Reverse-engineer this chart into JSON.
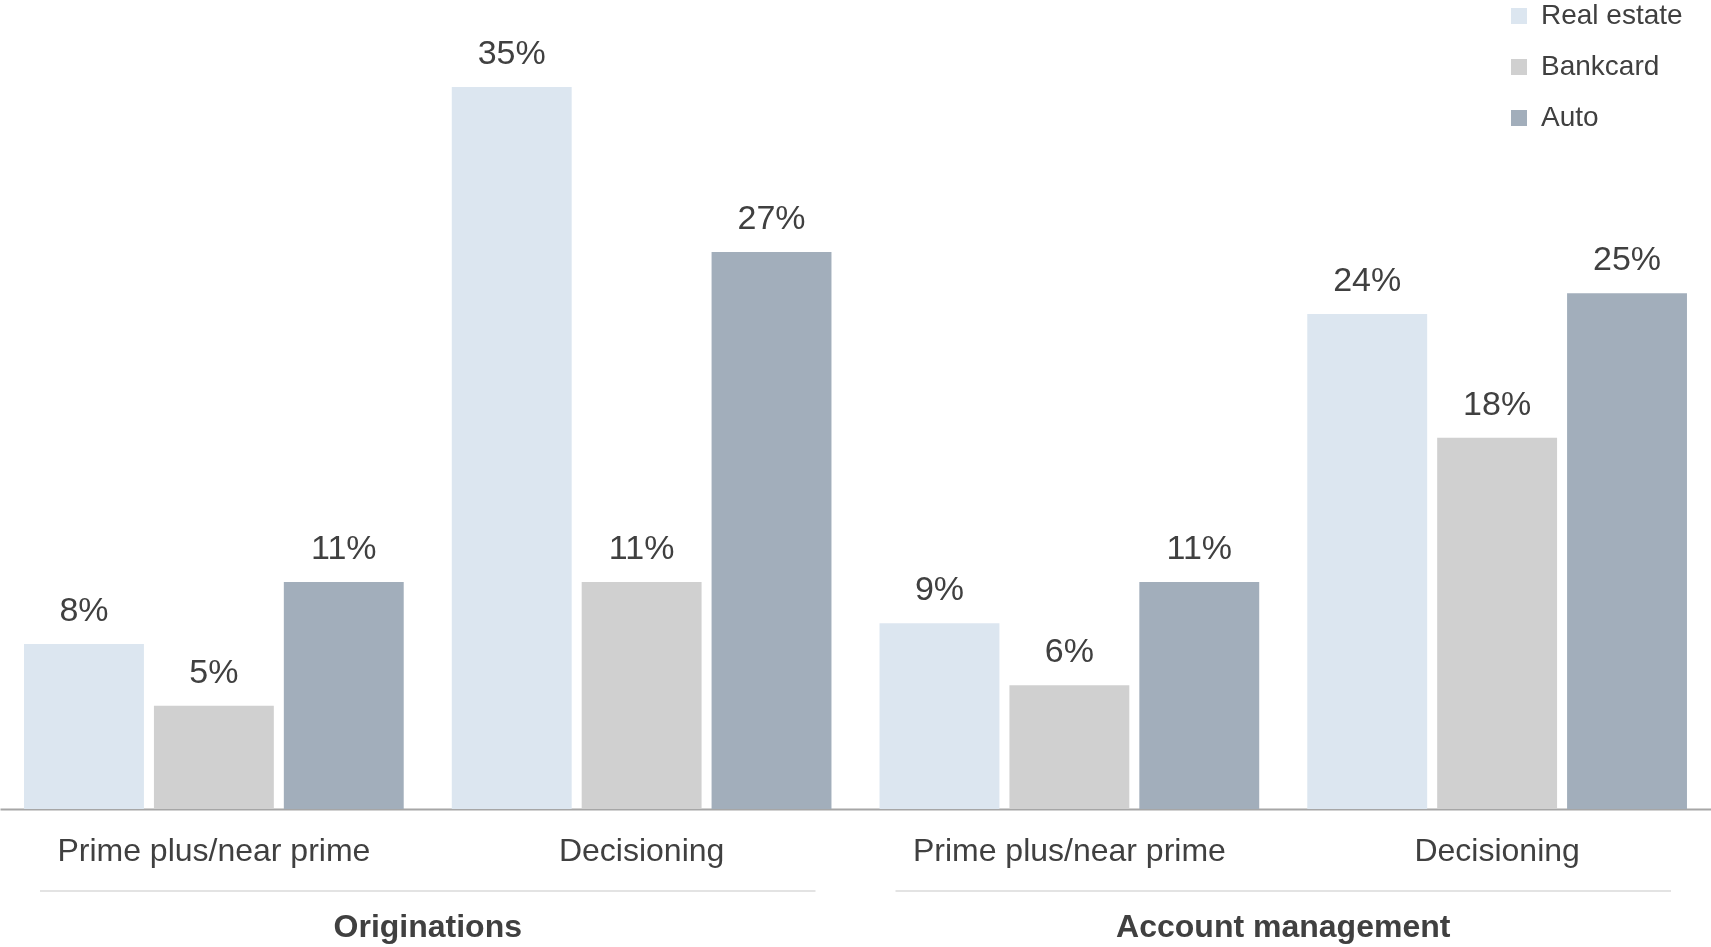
{
  "chart_data": {
    "type": "bar",
    "categories": [
      "Prime plus/near prime",
      "Decisioning",
      "Prime plus/near prime",
      "Decisioning"
    ],
    "series": [
      {
        "name": "Real estate",
        "color": "#dce6f0",
        "values": [
          8,
          35,
          9,
          24
        ],
        "value_labels": [
          "8%",
          "35%",
          "9%",
          "24%"
        ]
      },
      {
        "name": "Bankcard",
        "color": "#d0d0d0",
        "values": [
          5,
          11,
          6,
          18
        ],
        "value_labels": [
          "5%",
          "11%",
          "6%",
          "18%"
        ]
      },
      {
        "name": "Auto",
        "color": "#a2aebb",
        "values": [
          11,
          27,
          11,
          25
        ],
        "value_labels": [
          "11%",
          "27%",
          "11%",
          "25%"
        ]
      }
    ],
    "annotations": [
      "Originations",
      "Account management"
    ],
    "legend": "top right",
    "tick_labels": "x"
  }
}
